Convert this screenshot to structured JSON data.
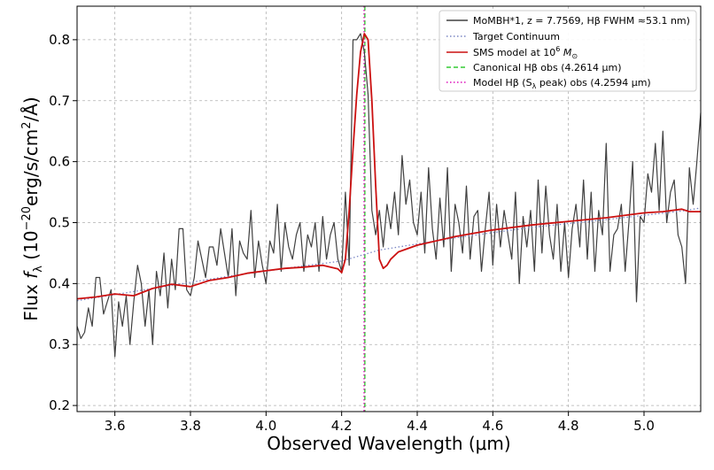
{
  "chart_data": {
    "type": "line",
    "title": "",
    "xlabel": "Observed Wavelength (μm)",
    "ylabel_main": "Flux ",
    "ylabel_f": "f",
    "ylabel_sub": "λ",
    "ylabel_paren_open": " (10",
    "ylabel_exp": "−20",
    "ylabel_units": "erg/s/cm",
    "ylabel_exp2": "2",
    "ylabel_tail": "/Å)",
    "xlim": [
      3.5,
      5.15
    ],
    "ylim": [
      0.19,
      0.855
    ],
    "grid": true,
    "legend_position": "upper-right",
    "xticks": [
      3.6,
      3.8,
      4.0,
      4.2,
      4.4,
      4.6,
      4.8,
      5.0
    ],
    "xtick_labels": [
      "3.6",
      "3.8",
      "4.0",
      "4.2",
      "4.4",
      "4.6",
      "4.8",
      "5.0"
    ],
    "yticks": [
      0.2,
      0.3,
      0.4,
      0.5,
      0.6,
      0.7,
      0.8
    ],
    "ytick_labels": [
      "0.2",
      "0.3",
      "0.4",
      "0.5",
      "0.6",
      "0.7",
      "0.8"
    ],
    "legend": [
      {
        "label": "MoMBH*1, z = 7.7569, Hβ FWHM  ≈53.1 nm)",
        "color": "#404040",
        "style": "solid"
      },
      {
        "label": "Target Continuum",
        "color": "#7b86c4",
        "style": "dotted"
      },
      {
        "label": "SMS model at 10",
        "sup": "6",
        "tail": " M",
        "subsym": "⊙",
        "color": "#cc1111",
        "style": "solid"
      },
      {
        "label": "Canonical Hβ obs (4.2614 μm)",
        "color": "#33cc33",
        "style": "dashed"
      },
      {
        "label": "Model Hβ (S",
        "sub": "λ",
        "tail": " peak) obs (4.2594 μm)",
        "color": "#dd11bb",
        "style": "dotted"
      }
    ],
    "vlines": [
      {
        "name": "canonical-hbeta-line",
        "x": 4.2614,
        "color": "#33cc33",
        "style": "dashed"
      },
      {
        "name": "model-hbeta-line",
        "x": 4.2594,
        "color": "#dd11bb",
        "style": "dotted"
      }
    ],
    "series": [
      {
        "name": "MoMBH*1 observed spectrum",
        "color": "#404040",
        "style": "solid",
        "x": [
          3.5,
          3.51,
          3.52,
          3.53,
          3.54,
          3.55,
          3.56,
          3.57,
          3.58,
          3.59,
          3.6,
          3.61,
          3.62,
          3.63,
          3.64,
          3.65,
          3.66,
          3.67,
          3.68,
          3.69,
          3.7,
          3.71,
          3.72,
          3.73,
          3.74,
          3.75,
          3.76,
          3.77,
          3.78,
          3.79,
          3.8,
          3.81,
          3.82,
          3.83,
          3.84,
          3.85,
          3.86,
          3.87,
          3.88,
          3.89,
          3.9,
          3.91,
          3.92,
          3.93,
          3.94,
          3.95,
          3.96,
          3.97,
          3.98,
          3.99,
          4.0,
          4.01,
          4.02,
          4.03,
          4.04,
          4.05,
          4.06,
          4.07,
          4.08,
          4.09,
          4.1,
          4.11,
          4.12,
          4.13,
          4.14,
          4.15,
          4.16,
          4.17,
          4.18,
          4.19,
          4.2,
          4.21,
          4.22,
          4.23,
          4.24,
          4.25,
          4.26,
          4.27,
          4.28,
          4.29,
          4.3,
          4.31,
          4.32,
          4.33,
          4.34,
          4.35,
          4.36,
          4.37,
          4.38,
          4.39,
          4.4,
          4.41,
          4.42,
          4.43,
          4.44,
          4.45,
          4.46,
          4.47,
          4.48,
          4.49,
          4.5,
          4.51,
          4.52,
          4.53,
          4.54,
          4.55,
          4.56,
          4.57,
          4.58,
          4.59,
          4.6,
          4.61,
          4.62,
          4.63,
          4.64,
          4.65,
          4.66,
          4.67,
          4.68,
          4.69,
          4.7,
          4.71,
          4.72,
          4.73,
          4.74,
          4.75,
          4.76,
          4.77,
          4.78,
          4.79,
          4.8,
          4.81,
          4.82,
          4.83,
          4.84,
          4.85,
          4.86,
          4.87,
          4.88,
          4.89,
          4.9,
          4.91,
          4.92,
          4.93,
          4.94,
          4.95,
          4.96,
          4.97,
          4.98,
          4.99,
          5.0,
          5.01,
          5.02,
          5.03,
          5.04,
          5.05,
          5.06,
          5.07,
          5.08,
          5.09,
          5.1,
          5.11,
          5.12,
          5.13,
          5.14,
          5.15
        ],
        "y": [
          0.33,
          0.31,
          0.32,
          0.36,
          0.33,
          0.41,
          0.41,
          0.35,
          0.37,
          0.39,
          0.28,
          0.37,
          0.33,
          0.38,
          0.3,
          0.37,
          0.43,
          0.4,
          0.33,
          0.39,
          0.3,
          0.42,
          0.38,
          0.45,
          0.36,
          0.44,
          0.39,
          0.49,
          0.49,
          0.39,
          0.38,
          0.41,
          0.47,
          0.44,
          0.41,
          0.46,
          0.46,
          0.43,
          0.49,
          0.45,
          0.41,
          0.49,
          0.38,
          0.47,
          0.45,
          0.44,
          0.52,
          0.41,
          0.47,
          0.43,
          0.4,
          0.47,
          0.45,
          0.53,
          0.42,
          0.5,
          0.46,
          0.44,
          0.48,
          0.5,
          0.42,
          0.48,
          0.46,
          0.5,
          0.42,
          0.51,
          0.44,
          0.48,
          0.5,
          0.44,
          0.42,
          0.55,
          0.43,
          0.8,
          0.8,
          0.81,
          0.78,
          0.71,
          0.52,
          0.48,
          0.52,
          0.46,
          0.53,
          0.49,
          0.55,
          0.48,
          0.61,
          0.53,
          0.57,
          0.5,
          0.48,
          0.55,
          0.45,
          0.59,
          0.49,
          0.44,
          0.54,
          0.46,
          0.59,
          0.42,
          0.53,
          0.5,
          0.45,
          0.56,
          0.44,
          0.51,
          0.52,
          0.42,
          0.49,
          0.55,
          0.43,
          0.53,
          0.46,
          0.52,
          0.48,
          0.44,
          0.55,
          0.4,
          0.51,
          0.46,
          0.52,
          0.42,
          0.57,
          0.45,
          0.56,
          0.48,
          0.44,
          0.53,
          0.42,
          0.5,
          0.41,
          0.49,
          0.53,
          0.46,
          0.57,
          0.44,
          0.55,
          0.42,
          0.52,
          0.48,
          0.63,
          0.42,
          0.48,
          0.49,
          0.53,
          0.42,
          0.5,
          0.6,
          0.37,
          0.51,
          0.5,
          0.58,
          0.55,
          0.63,
          0.52,
          0.65,
          0.5,
          0.55,
          0.57,
          0.48,
          0.46,
          0.4,
          0.59,
          0.53,
          0.6,
          0.68
        ]
      },
      {
        "name": "Target Continuum",
        "color": "#7b86c4",
        "style": "dotted",
        "x": [
          3.5,
          3.7,
          3.9,
          4.1,
          4.2,
          4.3,
          4.5,
          4.7,
          4.9,
          5.1,
          5.15
        ],
        "y": [
          0.372,
          0.392,
          0.412,
          0.429,
          0.437,
          0.455,
          0.475,
          0.492,
          0.505,
          0.519,
          0.524
        ]
      },
      {
        "name": "SMS model at 10^6 Msun",
        "color": "#cc1111",
        "style": "solid",
        "x": [
          3.5,
          3.55,
          3.6,
          3.65,
          3.7,
          3.75,
          3.8,
          3.85,
          3.9,
          3.95,
          4.0,
          4.05,
          4.1,
          4.15,
          4.19,
          4.2,
          4.21,
          4.22,
          4.23,
          4.24,
          4.25,
          4.26,
          4.27,
          4.28,
          4.29,
          4.3,
          4.31,
          4.32,
          4.33,
          4.35,
          4.4,
          4.5,
          4.6,
          4.7,
          4.8,
          4.9,
          5.0,
          5.05,
          5.1,
          5.12,
          5.15
        ],
        "y": [
          0.375,
          0.378,
          0.383,
          0.38,
          0.392,
          0.399,
          0.395,
          0.405,
          0.41,
          0.417,
          0.421,
          0.425,
          0.427,
          0.43,
          0.424,
          0.418,
          0.44,
          0.52,
          0.62,
          0.71,
          0.78,
          0.81,
          0.8,
          0.7,
          0.56,
          0.44,
          0.425,
          0.43,
          0.44,
          0.452,
          0.463,
          0.477,
          0.488,
          0.496,
          0.502,
          0.508,
          0.516,
          0.518,
          0.522,
          0.518,
          0.518
        ]
      }
    ]
  }
}
